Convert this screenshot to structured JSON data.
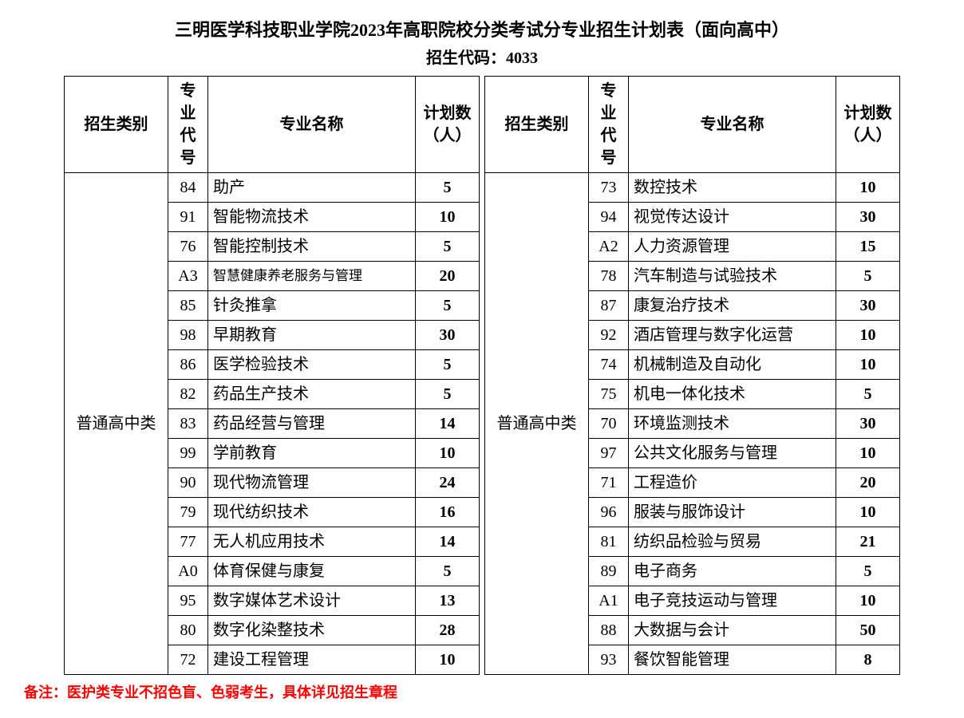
{
  "title": "三明医学科技职业学院2023年高职院校分类考试分专业招生计划表（面向高中）",
  "subtitle_prefix": "招生代码：",
  "subtitle_code": "4033",
  "headers": {
    "category": "招生类别",
    "major_code": "专业代号",
    "major_name": "专业名称",
    "plan": "计划数（人）"
  },
  "category_label": "普通高中类",
  "left_rows": [
    {
      "code": "84",
      "name": "助产",
      "plan": "5",
      "small": false
    },
    {
      "code": "91",
      "name": "智能物流技术",
      "plan": "10",
      "small": false
    },
    {
      "code": "76",
      "name": "智能控制技术",
      "plan": "5",
      "small": false
    },
    {
      "code": "A3",
      "name": "智慧健康养老服务与管理",
      "plan": "20",
      "small": true
    },
    {
      "code": "85",
      "name": "针灸推拿",
      "plan": "5",
      "small": false
    },
    {
      "code": "98",
      "name": "早期教育",
      "plan": "30",
      "small": false
    },
    {
      "code": "86",
      "name": "医学检验技术",
      "plan": "5",
      "small": false
    },
    {
      "code": "82",
      "name": "药品生产技术",
      "plan": "5",
      "small": false
    },
    {
      "code": "83",
      "name": "药品经营与管理",
      "plan": "14",
      "small": false
    },
    {
      "code": "99",
      "name": "学前教育",
      "plan": "10",
      "small": false
    },
    {
      "code": "90",
      "name": "现代物流管理",
      "plan": "24",
      "small": false
    },
    {
      "code": "79",
      "name": "现代纺织技术",
      "plan": "16",
      "small": false
    },
    {
      "code": "77",
      "name": "无人机应用技术",
      "plan": "14",
      "small": false
    },
    {
      "code": "A0",
      "name": "体育保健与康复",
      "plan": "5",
      "small": false
    },
    {
      "code": "95",
      "name": "数字媒体艺术设计",
      "plan": "13",
      "small": false
    },
    {
      "code": "80",
      "name": "数字化染整技术",
      "plan": "28",
      "small": false
    },
    {
      "code": "72",
      "name": "建设工程管理",
      "plan": "10",
      "small": false
    }
  ],
  "right_rows": [
    {
      "code": "73",
      "name": "数控技术",
      "plan": "10",
      "small": false
    },
    {
      "code": "94",
      "name": "视觉传达设计",
      "plan": "30",
      "small": false
    },
    {
      "code": "A2",
      "name": "人力资源管理",
      "plan": "15",
      "small": false
    },
    {
      "code": "78",
      "name": "汽车制造与试验技术",
      "plan": "5",
      "small": false
    },
    {
      "code": "87",
      "name": "康复治疗技术",
      "plan": "30",
      "small": false
    },
    {
      "code": "92",
      "name": "酒店管理与数字化运营",
      "plan": "10",
      "small": false
    },
    {
      "code": "74",
      "name": "机械制造及自动化",
      "plan": "10",
      "small": false
    },
    {
      "code": "75",
      "name": "机电一体化技术",
      "plan": "5",
      "small": false
    },
    {
      "code": "70",
      "name": "环境监测技术",
      "plan": "30",
      "small": false
    },
    {
      "code": "97",
      "name": "公共文化服务与管理",
      "plan": "10",
      "small": false
    },
    {
      "code": "71",
      "name": "工程造价",
      "plan": "20",
      "small": false
    },
    {
      "code": "96",
      "name": "服装与服饰设计",
      "plan": "10",
      "small": false
    },
    {
      "code": "81",
      "name": "纺织品检验与贸易",
      "plan": "21",
      "small": false
    },
    {
      "code": "89",
      "name": "电子商务",
      "plan": "5",
      "small": false
    },
    {
      "code": "A1",
      "name": "电子竞技运动与管理",
      "plan": "10",
      "small": false
    },
    {
      "code": "88",
      "name": "大数据与会计",
      "plan": "50",
      "small": false
    },
    {
      "code": "93",
      "name": "餐饮智能管理",
      "plan": "8",
      "small": false
    }
  ],
  "note": "备注：医护类专业不招色盲、色弱考生，具体详见招生章程",
  "colors": {
    "text": "#000000",
    "note": "#ff0000",
    "border": "#000000",
    "background": "#ffffff"
  },
  "layout": {
    "col_cat_w": 130,
    "col_code_w": 50,
    "col_name_w": 260,
    "col_plan_w": 80,
    "title_fontsize": 22,
    "subtitle_fontsize": 20,
    "cell_fontsize": 20,
    "small_fontsize": 17,
    "note_fontsize": 18
  }
}
